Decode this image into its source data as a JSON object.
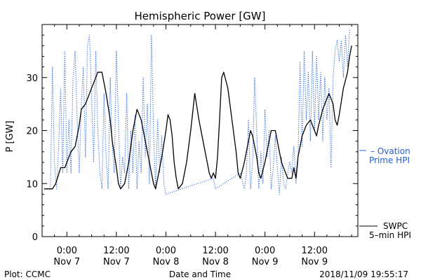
{
  "chart_data": {
    "type": "line",
    "title": "Hemispheric Power [GW]",
    "xlabel": "Date and Time",
    "ylabel": "P [GW]",
    "ylim": [
      0,
      40
    ],
    "yticks": [
      0,
      10,
      20,
      30
    ],
    "xlim_hours": [
      -6,
      70.5
    ],
    "xticks": [
      {
        "hour": 0,
        "time": "0:00",
        "day": "Nov 7"
      },
      {
        "hour": 12,
        "time": "12:00",
        "day": "Nov 7"
      },
      {
        "hour": 24,
        "time": "0:00",
        "day": "Nov 8"
      },
      {
        "hour": 36,
        "time": "12:00",
        "day": "Nov 8"
      },
      {
        "hour": 48,
        "time": "0:00",
        "day": "Nov 9"
      },
      {
        "hour": 60,
        "time": "12:00",
        "day": "Nov 9"
      }
    ],
    "grid": false,
    "series": [
      {
        "name": "SWPC 5-min HPI",
        "color": "#000000",
        "style": "solid",
        "points": [
          [
            -5.5,
            9
          ],
          [
            -3.5,
            9
          ],
          [
            -2.7,
            10
          ],
          [
            -1.5,
            13
          ],
          [
            -0.5,
            13
          ],
          [
            0.5,
            15
          ],
          [
            1.0,
            16
          ],
          [
            2.0,
            17
          ],
          [
            2.5,
            19
          ],
          [
            3.0,
            21
          ],
          [
            3.5,
            24
          ],
          [
            4.5,
            25
          ],
          [
            5.5,
            27
          ],
          [
            6.5,
            29
          ],
          [
            7.5,
            31
          ],
          [
            8.5,
            31
          ],
          [
            9.5,
            27
          ],
          [
            10.5,
            22
          ],
          [
            11.0,
            18
          ],
          [
            12.0,
            13
          ],
          [
            12.5,
            10
          ],
          [
            13.0,
            9
          ],
          [
            14.0,
            10
          ],
          [
            15.0,
            14
          ],
          [
            16.0,
            20
          ],
          [
            17.0,
            24
          ],
          [
            18.0,
            22
          ],
          [
            19.0,
            18
          ],
          [
            20.0,
            14
          ],
          [
            21.0,
            10
          ],
          [
            21.5,
            9
          ],
          [
            22.0,
            11
          ],
          [
            23.0,
            15
          ],
          [
            24.0,
            20
          ],
          [
            24.5,
            23
          ],
          [
            25.0,
            22
          ],
          [
            25.5,
            19
          ],
          [
            26.0,
            14
          ],
          [
            26.5,
            11
          ],
          [
            27.0,
            9
          ],
          [
            28.0,
            10
          ],
          [
            29.0,
            14
          ],
          [
            30.0,
            20
          ],
          [
            31.0,
            27
          ],
          [
            32.0,
            22
          ],
          [
            33.0,
            18
          ],
          [
            34.0,
            14
          ],
          [
            34.5,
            12
          ],
          [
            35.0,
            11
          ],
          [
            35.5,
            12
          ],
          [
            36.0,
            11
          ],
          [
            36.5,
            15
          ],
          [
            37.0,
            22
          ],
          [
            37.5,
            30
          ],
          [
            38.0,
            31
          ],
          [
            39.0,
            28
          ],
          [
            40.0,
            22
          ],
          [
            41.0,
            16
          ],
          [
            41.5,
            12
          ],
          [
            42.0,
            11
          ],
          [
            43.0,
            14
          ],
          [
            44.0,
            18
          ],
          [
            44.5,
            20
          ],
          [
            45.0,
            19
          ],
          [
            46.0,
            15
          ],
          [
            46.5,
            12
          ],
          [
            47.0,
            11
          ],
          [
            48.0,
            14
          ],
          [
            49.0,
            18
          ],
          [
            49.5,
            20
          ],
          [
            50.5,
            20
          ],
          [
            51.0,
            18
          ],
          [
            51.5,
            16
          ],
          [
            52.0,
            14
          ],
          [
            52.5,
            13
          ],
          [
            53.5,
            11
          ],
          [
            54.5,
            11
          ],
          [
            55.0,
            13
          ],
          [
            55.5,
            11
          ],
          [
            56.0,
            15
          ],
          [
            57.0,
            19
          ],
          [
            58.0,
            21
          ],
          [
            59.0,
            22
          ],
          [
            59.5,
            21
          ],
          [
            60.0,
            20
          ],
          [
            60.5,
            19
          ],
          [
            61.0,
            21
          ],
          [
            62.0,
            24
          ],
          [
            63.0,
            26
          ],
          [
            63.5,
            27
          ],
          [
            64.0,
            26
          ],
          [
            64.5,
            25
          ],
          [
            65.0,
            22
          ],
          [
            65.5,
            21
          ],
          [
            66.0,
            23
          ],
          [
            67.0,
            28
          ],
          [
            68.0,
            31
          ],
          [
            68.5,
            34
          ],
          [
            69.0,
            36
          ]
        ]
      },
      {
        "name": "Ovation Prime HPI",
        "color": "#1f5fd6",
        "style": "dotted",
        "points": [
          [
            -4.0,
            9
          ],
          [
            -3.5,
            32
          ],
          [
            -3.0,
            14
          ],
          [
            -2.5,
            9
          ],
          [
            -2.0,
            17
          ],
          [
            -1.5,
            28
          ],
          [
            -1.0,
            12
          ],
          [
            -0.5,
            35
          ],
          [
            0.0,
            12
          ],
          [
            0.5,
            22
          ],
          [
            1.0,
            12
          ],
          [
            1.5,
            30
          ],
          [
            2.0,
            35
          ],
          [
            2.5,
            22
          ],
          [
            3.0,
            12
          ],
          [
            3.5,
            25
          ],
          [
            4.0,
            32
          ],
          [
            4.5,
            15
          ],
          [
            5.0,
            36
          ],
          [
            5.5,
            38
          ],
          [
            6.0,
            26
          ],
          [
            6.5,
            14
          ],
          [
            7.0,
            35
          ],
          [
            7.5,
            20
          ],
          [
            8.0,
            12
          ],
          [
            8.5,
            9
          ],
          [
            9.0,
            27
          ],
          [
            9.5,
            15
          ],
          [
            10.0,
            9
          ],
          [
            10.5,
            30
          ],
          [
            11.0,
            17
          ],
          [
            11.5,
            12
          ],
          [
            12.0,
            35
          ],
          [
            12.5,
            22
          ],
          [
            13.0,
            9
          ],
          [
            13.5,
            15
          ],
          [
            14.0,
            12
          ],
          [
            14.5,
            27
          ],
          [
            15.0,
            9
          ],
          [
            15.5,
            20
          ],
          [
            16.0,
            12
          ],
          [
            16.5,
            23
          ],
          [
            17.0,
            9
          ],
          [
            17.5,
            18
          ],
          [
            18.0,
            12
          ],
          [
            18.5,
            30
          ],
          [
            19.0,
            15
          ],
          [
            19.5,
            25
          ],
          [
            20.0,
            10
          ],
          [
            20.5,
            38
          ],
          [
            21.0,
            20
          ],
          [
            21.5,
            9
          ],
          [
            22.0,
            22
          ],
          [
            22.5,
            12
          ],
          [
            23.0,
            19
          ],
          [
            23.5,
            10
          ],
          [
            24.0,
            8
          ],
          [
            35.5,
            11
          ],
          [
            36.0,
            9
          ],
          [
            42.0,
            12
          ],
          [
            43.0,
            9
          ],
          [
            43.5,
            12
          ],
          [
            44.0,
            22
          ],
          [
            44.5,
            9
          ],
          [
            45.0,
            14
          ],
          [
            45.5,
            30
          ],
          [
            46.0,
            20
          ],
          [
            46.5,
            9
          ],
          [
            47.0,
            16
          ],
          [
            47.5,
            10
          ],
          [
            48.0,
            24
          ],
          [
            48.5,
            15
          ],
          [
            49.0,
            20
          ],
          [
            49.5,
            9
          ],
          [
            50.0,
            13
          ],
          [
            50.5,
            19
          ],
          [
            51.0,
            13
          ],
          [
            51.5,
            8
          ],
          [
            52.0,
            15
          ],
          [
            52.5,
            10
          ],
          [
            53.0,
            9
          ],
          [
            53.5,
            12
          ],
          [
            54.0,
            14
          ],
          [
            54.5,
            12
          ],
          [
            55.0,
            17
          ],
          [
            55.5,
            10
          ],
          [
            56.0,
            14
          ],
          [
            56.5,
            33
          ],
          [
            57.0,
            17
          ],
          [
            57.5,
            35
          ],
          [
            58.0,
            22
          ],
          [
            58.5,
            31
          ],
          [
            59.0,
            18
          ],
          [
            59.5,
            35
          ],
          [
            60.0,
            20
          ],
          [
            60.5,
            34
          ],
          [
            61.0,
            22
          ],
          [
            61.5,
            31
          ],
          [
            62.0,
            18
          ],
          [
            62.5,
            30
          ],
          [
            63.0,
            22
          ],
          [
            63.5,
            28
          ],
          [
            64.0,
            13
          ],
          [
            64.5,
            30
          ],
          [
            65.0,
            35
          ],
          [
            65.5,
            37
          ],
          [
            66.0,
            33
          ],
          [
            66.5,
            37
          ],
          [
            67.0,
            30
          ],
          [
            67.5,
            38
          ],
          [
            68.0,
            32
          ],
          [
            68.5,
            39
          ]
        ]
      }
    ]
  },
  "legend": {
    "ovation_line1": "– Ovation",
    "ovation_line2": "Prime HPI",
    "swpc_line1": "SWPC",
    "swpc_line2": "5–min HPI"
  },
  "footer": {
    "plot_credit": "Plot: CCMC",
    "timestamp": "2018/11/09 19:55:17"
  }
}
